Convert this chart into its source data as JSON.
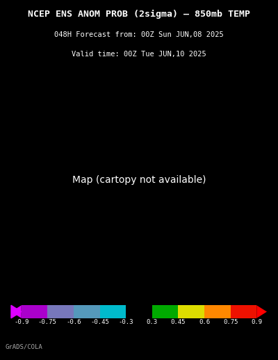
{
  "title_line1": "NCEP ENS ANOM PROB (2sigma) – 850mb TEMP",
  "title_line2": "048H Forecast from: 00Z Sun JUN,08 2025",
  "title_line3": "Valid time: 00Z Tue JUN,10 2025",
  "colorbar_labels": [
    "-0.9",
    "-0.75",
    "-0.6",
    "-0.45",
    "-0.3",
    "0.3",
    "0.45",
    "0.6",
    "0.75",
    "0.9"
  ],
  "colorbar_colors": [
    "#cc00cc",
    "#9900cc",
    "#6666cc",
    "#00cccc",
    "#000000",
    "#00aa00",
    "#ffff00",
    "#ff9900",
    "#ff0000"
  ],
  "colorbar_bounds": [
    -0.9,
    -0.75,
    -0.6,
    -0.45,
    -0.3,
    0.3,
    0.45,
    0.6,
    0.75,
    0.9
  ],
  "background_color": "#000000",
  "text_color": "#ffffff",
  "credit_text": "GrADS/COLA",
  "fig_width": 4.0,
  "fig_height": 5.18
}
